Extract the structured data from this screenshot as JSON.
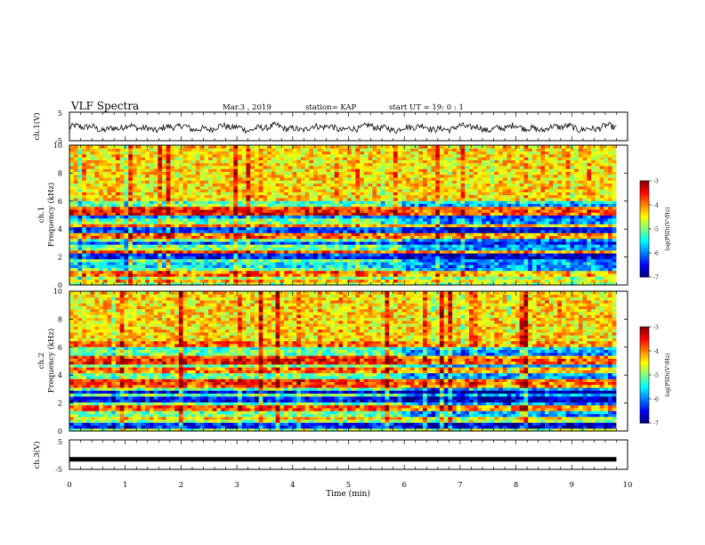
{
  "header": {
    "title": "VLF Spectra",
    "date": "Mar.3 , 2019",
    "station": "station= KAP",
    "start_ut": "start UT =  19: 0 : 1"
  },
  "colors": {
    "spectrum": [
      "#00007f",
      "#0000ff",
      "#007fff",
      "#00ffff",
      "#7fff7f",
      "#ffff00",
      "#ff7f00",
      "#ff0000",
      "#7f0000"
    ],
    "waveform": "#000000",
    "axis": "#000000"
  },
  "chart_data": [
    {
      "type": "line",
      "name": "ch1-waveform",
      "ylabel": "ch.1(V)",
      "xlim": [
        0,
        10
      ],
      "ylim": [
        -5,
        5
      ],
      "yticks": [
        "5",
        "-5"
      ],
      "x_end": 9.8,
      "mean": -0.5,
      "amplitude": 2.2
    },
    {
      "type": "heatmap",
      "name": "ch1-spectrogram",
      "ylabel_top": "ch.1",
      "ylabel": "Frequency (kHz)",
      "xlim": [
        0,
        10
      ],
      "ylim": [
        0,
        10
      ],
      "yticks": [
        "0",
        "2",
        "4",
        "6",
        "8",
        "10"
      ],
      "x_end": 9.8,
      "change_at_min": 5.9,
      "colorbar": {
        "label": "log(PSD)(V²/Hz)",
        "range": [
          -7,
          -3
        ],
        "ticks": [
          "-3",
          "-4",
          "-5",
          "-6",
          "-7"
        ]
      },
      "bands": [
        {
          "freq_khz": 0.3,
          "level": -4.2
        },
        {
          "freq_khz": 0.8,
          "level": -4.0
        },
        {
          "freq_khz": 1.5,
          "level": -5.6
        },
        {
          "freq_khz": 2.1,
          "level": -6.4
        },
        {
          "freq_khz": 2.4,
          "level": -3.8
        },
        {
          "freq_khz": 3.0,
          "level": -6.2
        },
        {
          "freq_khz": 3.5,
          "level": -3.9
        },
        {
          "freq_khz": 4.0,
          "level": -6.3
        },
        {
          "freq_khz": 4.3,
          "level": -4.1
        },
        {
          "freq_khz": 5.0,
          "level": -6.0
        },
        {
          "freq_khz": 5.2,
          "level": -3.6
        },
        {
          "freq_khz": 5.5,
          "level": -3.7
        },
        {
          "freq_khz": 5.9,
          "level": -5.2
        }
      ]
    },
    {
      "type": "heatmap",
      "name": "ch2-spectrogram",
      "ylabel_top": "ch.2",
      "ylabel": "Frequency (kHz)",
      "xlim": [
        0,
        10
      ],
      "ylim": [
        0,
        10
      ],
      "yticks": [
        "0",
        "2",
        "4",
        "6",
        "8",
        "10"
      ],
      "x_end": 9.8,
      "change_at_min": 5.9,
      "colorbar": {
        "label": "log(PSD)(V²/Hz)",
        "range": [
          -7,
          -3
        ],
        "ticks": [
          "-3",
          "-4",
          "-5",
          "-6",
          "-7"
        ]
      },
      "bands": [
        {
          "freq_khz": 0.4,
          "level": -6.4
        },
        {
          "freq_khz": 0.9,
          "level": -4.3
        },
        {
          "freq_khz": 1.7,
          "level": -3.8
        },
        {
          "freq_khz": 2.3,
          "level": -6.5
        },
        {
          "freq_khz": 2.8,
          "level": -6.6
        },
        {
          "freq_khz": 3.3,
          "level": -3.9
        },
        {
          "freq_khz": 3.6,
          "level": -3.7
        },
        {
          "freq_khz": 4.4,
          "level": -4.0
        },
        {
          "freq_khz": 5.0,
          "level": -3.6
        },
        {
          "freq_khz": 5.3,
          "level": -3.8
        },
        {
          "freq_khz": 6.0,
          "level": -5.3
        },
        {
          "freq_khz": 6.3,
          "level": -3.9
        }
      ]
    },
    {
      "type": "line",
      "name": "ch3-waveform",
      "ylabel": "ch.3(V)",
      "xlim": [
        0,
        10
      ],
      "ylim": [
        -5,
        5
      ],
      "yticks": [
        "5",
        "-5"
      ],
      "x_end": 9.8,
      "value": -1.6
    }
  ],
  "x_axis": {
    "label": "Time (min)",
    "ticks": [
      "0",
      "1",
      "2",
      "3",
      "4",
      "5",
      "6",
      "7",
      "8",
      "9",
      "10"
    ]
  }
}
